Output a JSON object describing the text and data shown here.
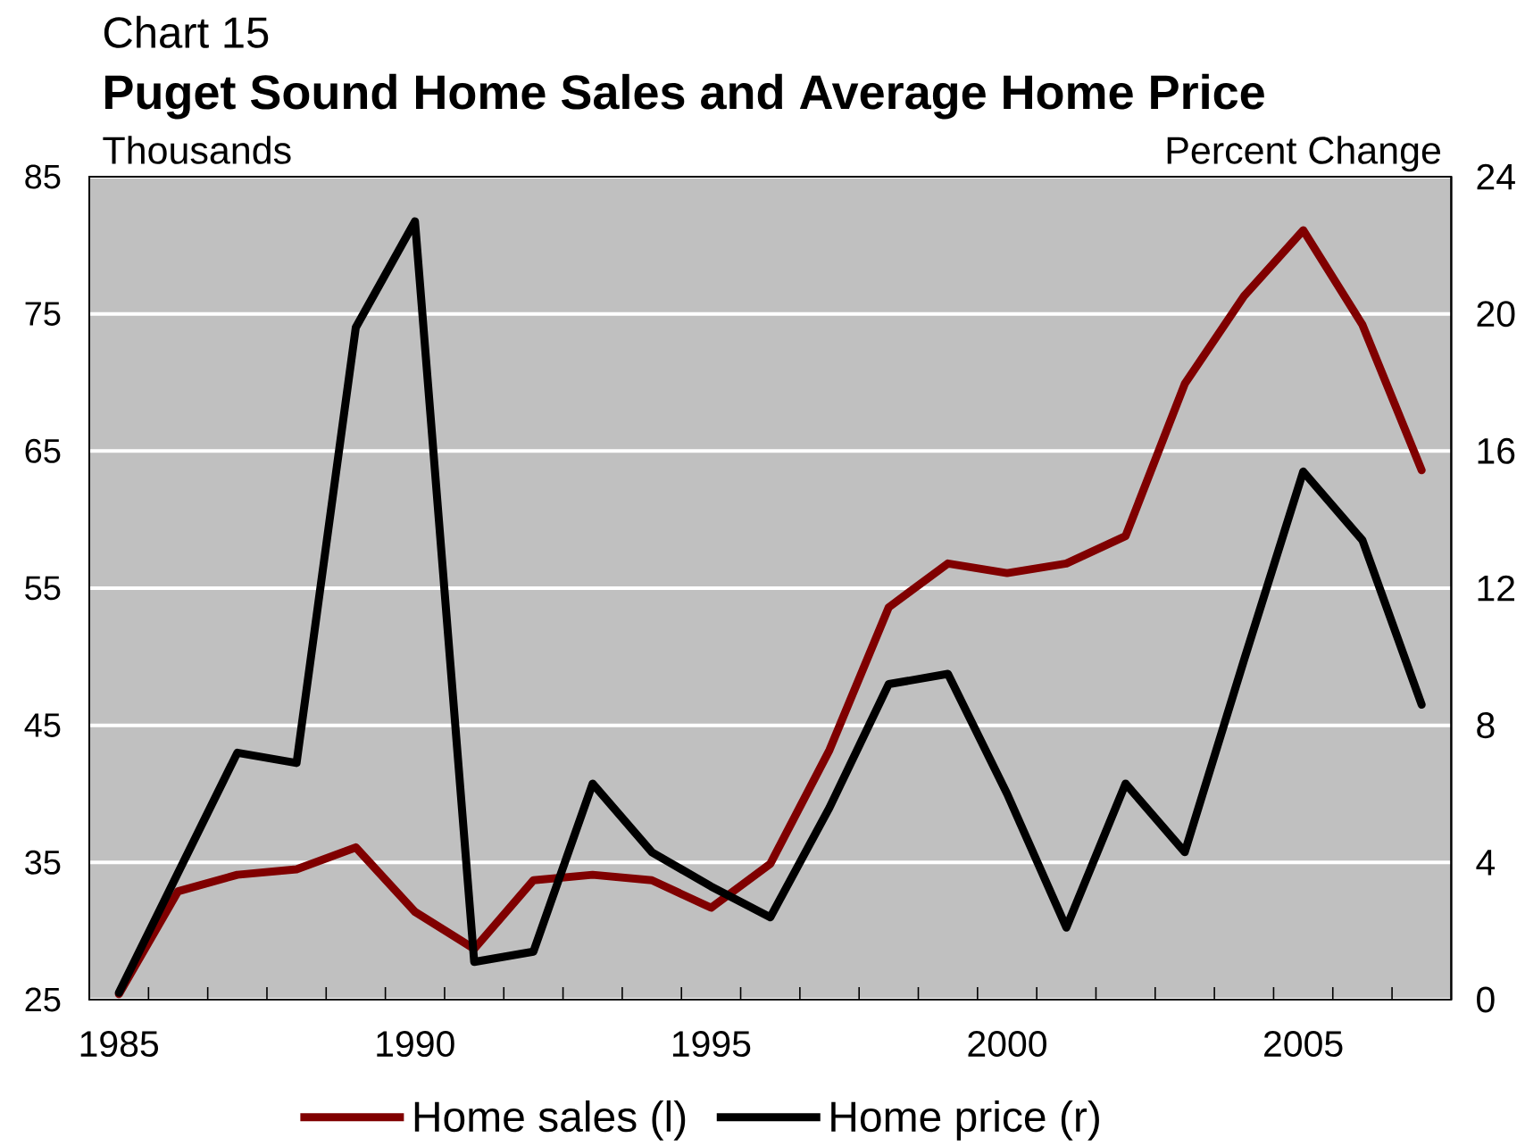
{
  "chart_data": {
    "type": "line",
    "title": "Puget Sound Home Sales and Average Home Price",
    "annotations": [
      "Chart 15"
    ],
    "ylabel": "Thousands",
    "y2label": "Percent Change",
    "categories": [
      "1985",
      null,
      null,
      null,
      null,
      "1990",
      null,
      null,
      null,
      null,
      "1995",
      null,
      null,
      null,
      null,
      "2000",
      null,
      null,
      null,
      null,
      "2005",
      null,
      null
    ],
    "ylim": [
      25,
      85
    ],
    "yticks": [
      25,
      35,
      45,
      55,
      65,
      75,
      85
    ],
    "y2lim": [
      0,
      24
    ],
    "y2ticks": [
      0,
      4,
      8,
      12,
      16,
      20,
      24
    ],
    "grid": "y",
    "legend": "bottom",
    "line_style": "solid",
    "series": [
      {
        "name": "Home sales (l)",
        "color": "#800000",
        "values": [
          25.4,
          32.9,
          34.1,
          34.5,
          36.1,
          31.4,
          28.7,
          33.7,
          34.1,
          33.7,
          31.7,
          34.9,
          43.2,
          53.6,
          56.8,
          56.1,
          56.8,
          58.8,
          69.9,
          76.3,
          81.1,
          74.2,
          63.6
        ]
      },
      {
        "name": "Home price (r)",
        "color": "#000000",
        "axis": "y2",
        "values": [
          0.2,
          3.7,
          7.2,
          6.9,
          19.6,
          22.7,
          1.1,
          1.4,
          6.3,
          4.3,
          3.3,
          2.4,
          5.6,
          9.2,
          9.5,
          6.0,
          2.1,
          6.3,
          4.3,
          9.9,
          15.4,
          13.4,
          8.6
        ]
      }
    ]
  }
}
